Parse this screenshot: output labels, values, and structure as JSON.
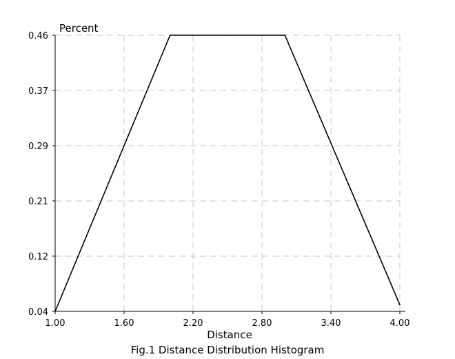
{
  "chart_data": {
    "type": "line",
    "caption": "Fig.1 Distance Distribution Histogram",
    "xlabel": "Distance",
    "ylabel": "Percent",
    "xlim": [
      1.0,
      4.0
    ],
    "ylim": [
      0.04,
      0.46
    ],
    "x_ticks": [
      "1.00",
      "1.60",
      "2.20",
      "2.80",
      "3.40",
      "4.00"
    ],
    "y_ticks": [
      "0.04",
      "0.12",
      "0.21",
      "0.29",
      "0.37",
      "0.46"
    ],
    "grid": true,
    "grid_style": "dashed",
    "colors": {
      "line": "#000000",
      "grid": "#c8c8c8",
      "axis": "#000000"
    },
    "series": [
      {
        "x": [
          1.0,
          2.0,
          2.5,
          3.0,
          4.0
        ],
        "y": [
          0.04,
          0.46,
          0.46,
          0.46,
          0.05
        ]
      }
    ]
  }
}
